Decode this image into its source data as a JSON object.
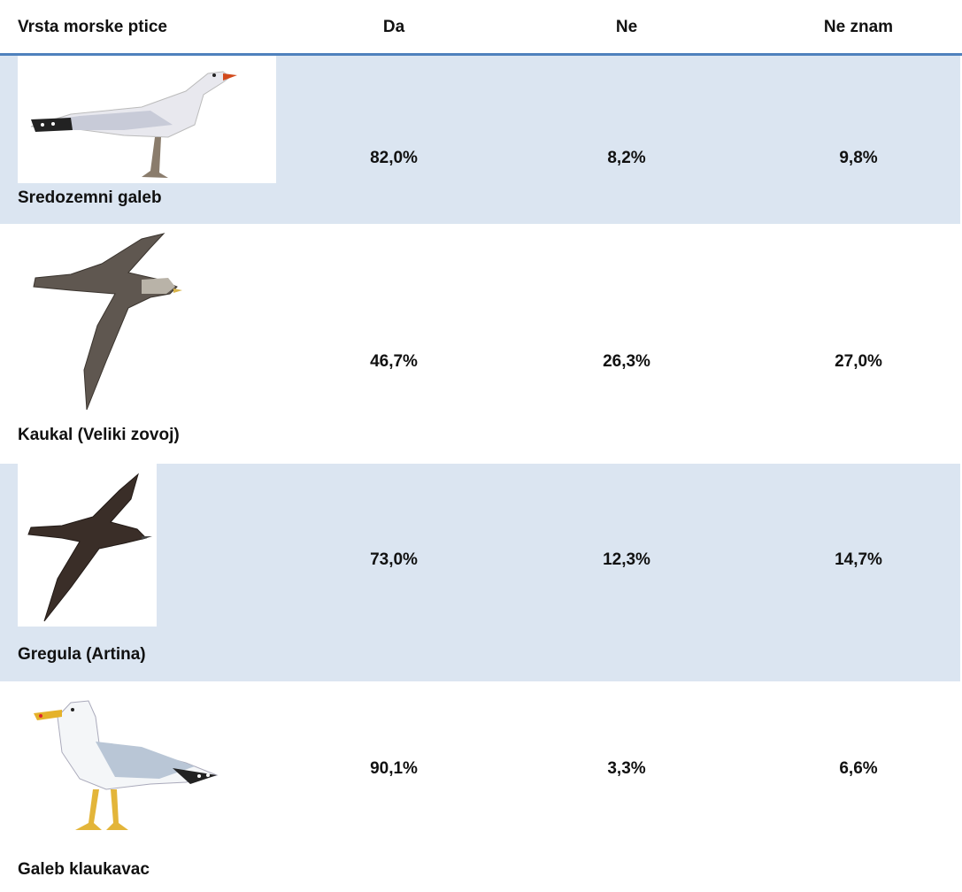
{
  "table": {
    "header": [
      "Vrsta morske ptice",
      "Da",
      "Ne",
      "Ne znam"
    ],
    "rows": [
      [
        "Sredozemni galeb",
        "82,0%",
        "8,2%",
        "9,8%"
      ],
      [
        "Kaukal (Veliki zovoj)",
        "46,7%",
        "26,3%",
        "27,0%"
      ],
      [
        "Gregula (Artina)",
        "73,0%",
        "12,3%",
        "14,7%"
      ],
      [
        "Galeb klaukavac",
        "90,1%",
        "3,3%",
        "6,6%"
      ]
    ]
  }
}
